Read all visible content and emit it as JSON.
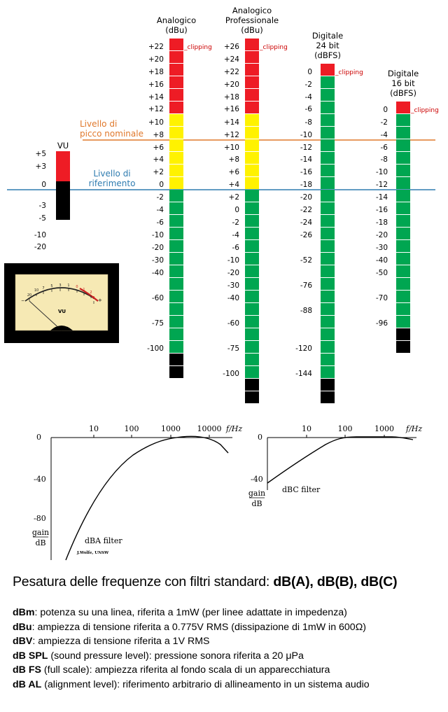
{
  "colors": {
    "red": "#ee1c25",
    "yellow": "#fff200",
    "green": "#00a651",
    "black": "#000000",
    "peak_line": "#e0782b",
    "ref_line": "#2f7cb0",
    "clip_text": "#cc0000"
  },
  "line_labels": {
    "peak": [
      "Livello di",
      "picco nominale"
    ],
    "reference": [
      "Livello di",
      "riferimento"
    ]
  },
  "clip_label": "_clipping",
  "meters": [
    {
      "title": [
        "VU"
      ],
      "segments": [
        [
          "red",
          4
        ],
        [
          "black",
          5
        ]
      ],
      "scale": [
        "+5",
        "+3",
        "0",
        "-3",
        "-5",
        "-10",
        "-20"
      ]
    },
    {
      "title": [
        "Analogico",
        "(dBu)"
      ],
      "segments": [
        [
          "red",
          6
        ],
        [
          "yellow",
          6
        ],
        [
          "green",
          13
        ],
        [
          "black",
          2
        ]
      ],
      "scale": [
        "+22",
        "+20",
        "+18",
        "+16",
        "+14",
        "+12",
        "+10",
        "+8",
        "+6",
        "+4",
        "+2",
        "0",
        "-2",
        "-4",
        "-6",
        "-10",
        "-20",
        "-30",
        "-40",
        "-60",
        "-75",
        "-100"
      ]
    },
    {
      "title": [
        "Analogico",
        "Professionale",
        "(dBu)"
      ],
      "segments": [
        [
          "red",
          6
        ],
        [
          "yellow",
          6
        ],
        [
          "green",
          15
        ],
        [
          "black",
          2
        ]
      ],
      "scale": [
        "+26",
        "+24",
        "+22",
        "+20",
        "+18",
        "+16",
        "+14",
        "+12",
        "+10",
        "+8",
        "+6",
        "+4",
        "+2",
        "0",
        "-2",
        "-4",
        "-6",
        "-10",
        "-20",
        "-30",
        "-40",
        "-60",
        "-75",
        "-100"
      ]
    },
    {
      "title": [
        "Digitale",
        "24 bit",
        "(dBFS)"
      ],
      "segments": [
        [
          "red",
          1
        ],
        [
          "green",
          24
        ],
        [
          "black",
          2
        ]
      ],
      "scale": [
        "0",
        "-2",
        "-4",
        "-6",
        "-8",
        "-10",
        "-12",
        "-14",
        "-16",
        "-18",
        "-20",
        "-22",
        "-24",
        "-26",
        "-52",
        "-76",
        "-88",
        "-120",
        "-144"
      ]
    },
    {
      "title": [
        "Digitale",
        "16 bit",
        "(dBFS)"
      ],
      "segments": [
        [
          "red",
          1
        ],
        [
          "green",
          17
        ],
        [
          "black",
          2
        ]
      ],
      "scale": [
        "0",
        "-2",
        "-4",
        "-6",
        "-8",
        "-10",
        "-12",
        "-14",
        "-16",
        "-18",
        "-20",
        "-30",
        "-40",
        "-50",
        "-70",
        "-96"
      ]
    }
  ],
  "vu_meter": {
    "title": "VU",
    "scale": [
      "20",
      "10",
      "7",
      "5",
      "3",
      "1",
      "0",
      "1",
      "2",
      "3"
    ],
    "minus": "−",
    "plus": "+"
  },
  "filters": [
    {
      "name": "dBA filter",
      "credit": "J.Wolfe, UNSW",
      "x_ticks": [
        "10",
        "100",
        "1000",
        "10000"
      ],
      "x_unit": "f/Hz",
      "y_ticks": [
        "0",
        "-40",
        "-80"
      ],
      "y_label_num": "gain",
      "y_label_den": "dB"
    },
    {
      "name": "dBC filter",
      "x_ticks": [
        "10",
        "100",
        "1000"
      ],
      "x_unit": "f/Hz",
      "y_ticks": [
        "0",
        "-40"
      ],
      "y_label_num": "gain",
      "y_label_den": "dB"
    }
  ],
  "notes": {
    "heading_plain": "Pesatura delle frequenze con filtri standard: ",
    "heading_bold": "dB(A), dB(B), dB(C)",
    "definitions": [
      {
        "term": "dBm",
        "text": ": potenza su una linea, riferita a 1mW (per linee adattate in impedenza)"
      },
      {
        "term": "dBu",
        "text": ": ampiezza di tensione riferita a 0.775V RMS (dissipazione di 1mW in 600Ω)"
      },
      {
        "term": "dBV",
        "text": ": ampiezza di tensione riferita a 1V RMS"
      },
      {
        "term": "dB SPL",
        "text": " (sound pressure level): pressione sonora riferita a 20 μPa"
      },
      {
        "term": "dB FS",
        "text": " (full scale): ampiezza riferita al fondo scala di un apparecchiatura"
      },
      {
        "term": "dB AL",
        "text": " (alignment level): riferimento arbitrario di allineamento in un sistema audio"
      }
    ]
  }
}
